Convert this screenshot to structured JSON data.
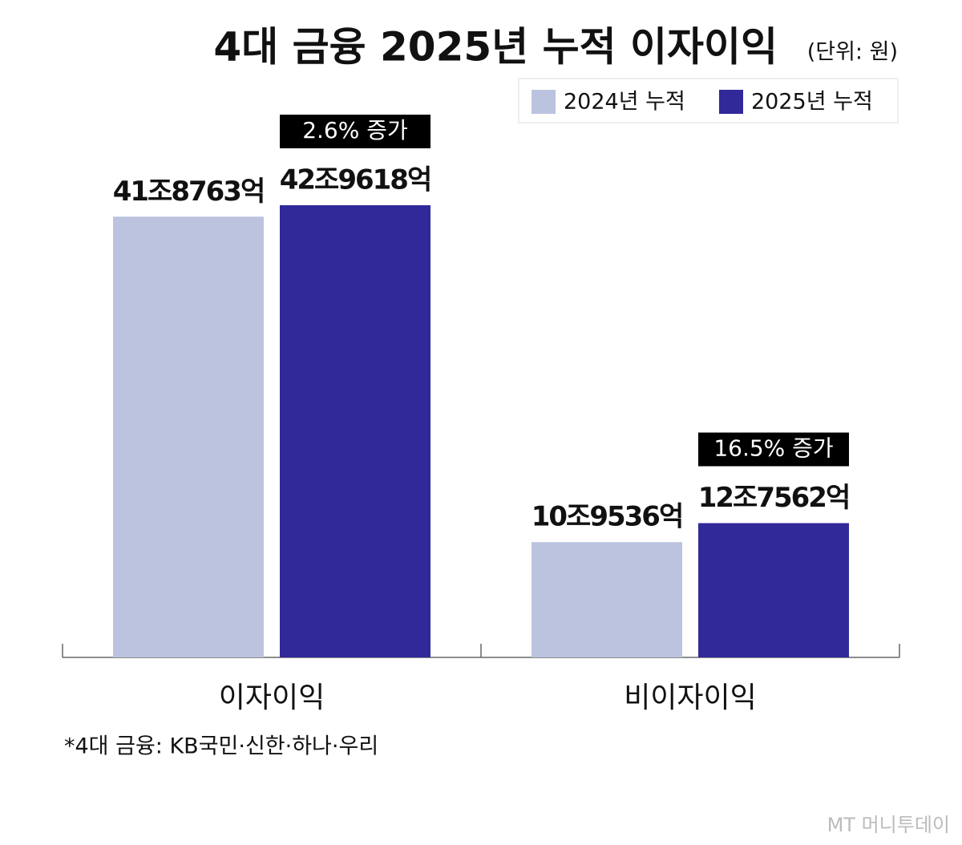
{
  "chart_data": {
    "type": "bar",
    "title": "4대 금융 2025년 누적 이자이익",
    "subtitle": "(단위: 원)",
    "categories": [
      "이자이익",
      "비이자이익"
    ],
    "series": [
      {
        "name": "2024년 누적",
        "color": "#bcc3de",
        "values": [
          418763,
          109536
        ],
        "value_labels": [
          "41조8763억",
          "10조9536억"
        ]
      },
      {
        "name": "2025년 누적",
        "color": "#31289a",
        "values": [
          429618,
          127562
        ],
        "value_labels": [
          "42조9618억",
          "12조7562억"
        ]
      }
    ],
    "annotations": [
      "2.6% 증가",
      "16.5% 증가"
    ],
    "footnote": "*4대 금융: KB국민·신한·하나·우리",
    "source": "MT 머니투데이",
    "legend": "top-right"
  }
}
